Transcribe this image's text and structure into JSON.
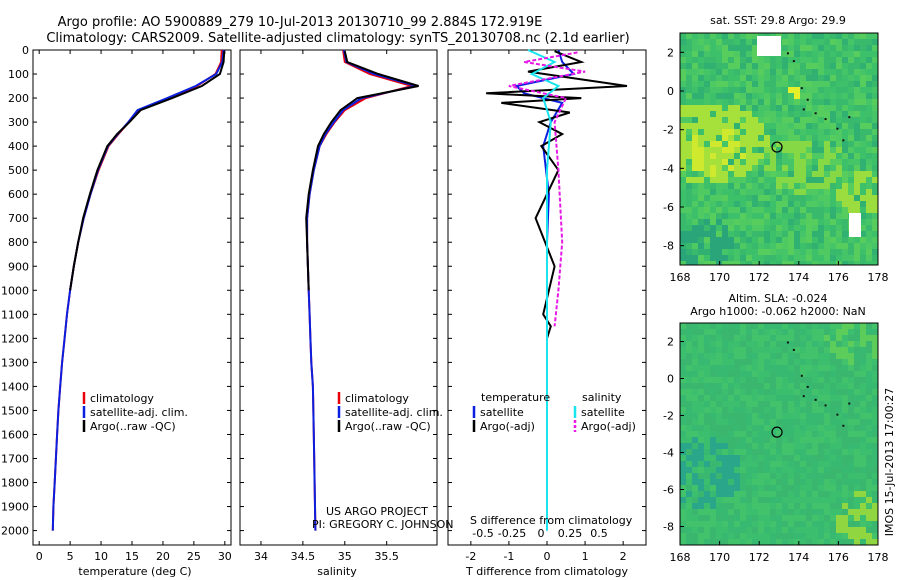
{
  "header": {
    "line1": "Argo profile: AO 5900889_279 10-Jul-2013 20130710_99 2.884S 172.919E",
    "line2": "Climatology: CARS2009. Satellite-adjusted climatology: synTS_20130708.nc (2.1d earlier)"
  },
  "credits": {
    "project": "US ARGO PROJECT",
    "pi": "PI: GREGORY C. JOHNSON"
  },
  "timestamp": "IMOS 15-Jul-2013 17:00:27",
  "colors": {
    "climatology": "#e8000b",
    "satellite": "#0a1fe0",
    "argo": "#000000",
    "sal_satellite": "#18e5ee",
    "sal_argo": "#e619e6",
    "map_base": "#35c270"
  },
  "chart_data": [
    {
      "type": "line",
      "id": "temperature",
      "xlabel": "temperature (deg C)",
      "xlim": [
        -1,
        31
      ],
      "xticks": [
        0,
        5,
        10,
        15,
        20,
        25,
        30
      ],
      "ylim": [
        0,
        2060
      ],
      "yticks": [
        0,
        100,
        200,
        300,
        400,
        500,
        600,
        700,
        800,
        900,
        1000,
        1100,
        1200,
        1300,
        1400,
        1500,
        1600,
        1700,
        1800,
        1900,
        2000
      ],
      "legend": [
        "climatology",
        "satellite-adj. clim.",
        "Argo(..raw -QC)"
      ],
      "series": [
        {
          "name": "climatology",
          "x": [
            29.5,
            29.4,
            28.5,
            25.5,
            21,
            16,
            14.5,
            12.8,
            11.2,
            9.6,
            8.3,
            7.2,
            6.3,
            5.6,
            5,
            4.5,
            4.1,
            3.7,
            3.4,
            3.1,
            2.9,
            2.7,
            2.5,
            2.3,
            2.2
          ],
          "y": [
            0,
            50,
            100,
            150,
            200,
            250,
            300,
            350,
            400,
            500,
            600,
            700,
            800,
            900,
            1000,
            1100,
            1200,
            1300,
            1400,
            1500,
            1600,
            1700,
            1800,
            1900,
            2000
          ]
        },
        {
          "name": "satellite-adj. clim.",
          "x": [
            29.8,
            29.6,
            28.6,
            25.3,
            20.7,
            15.9,
            14.4,
            12.7,
            11.1,
            9.5,
            8.3,
            7.2,
            6.3,
            5.6,
            5,
            4.5,
            4.1,
            3.7,
            3.4,
            3.1,
            2.9,
            2.7,
            2.5,
            2.3,
            2.2
          ],
          "y": [
            0,
            50,
            100,
            150,
            200,
            250,
            300,
            350,
            400,
            500,
            600,
            700,
            800,
            900,
            1000,
            1100,
            1200,
            1300,
            1400,
            1500,
            1600,
            1700,
            1800,
            1900,
            2000
          ]
        },
        {
          "name": "Argo(..raw -QC)",
          "x": [
            29.9,
            29.8,
            29.2,
            26.3,
            21.5,
            16.4,
            14.6,
            12.6,
            11,
            9.4,
            8.2,
            7.1,
            6.3,
            5.6,
            5
          ],
          "y": [
            5,
            50,
            100,
            150,
            200,
            250,
            300,
            350,
            400,
            500,
            600,
            700,
            800,
            900,
            1000
          ]
        }
      ]
    },
    {
      "type": "line",
      "id": "salinity",
      "xlabel": "salinity",
      "xlim": [
        33.75,
        36.1
      ],
      "xticks": [
        34,
        34.5,
        35,
        35.5
      ],
      "ylim": [
        0,
        2060
      ],
      "legend": [
        "climatology",
        "satellite-adj. clim.",
        "Argo(..raw -QC)"
      ],
      "series": [
        {
          "name": "climatology",
          "x": [
            34.98,
            35.0,
            35.3,
            35.8,
            35.25,
            35.0,
            34.88,
            34.78,
            34.7,
            34.63,
            34.58,
            34.55,
            34.55,
            34.56,
            34.57,
            34.58,
            34.59,
            34.6,
            34.62,
            34.63,
            34.64,
            34.65
          ],
          "y": [
            0,
            50,
            100,
            150,
            200,
            250,
            300,
            350,
            400,
            500,
            600,
            700,
            800,
            900,
            1000,
            1100,
            1200,
            1300,
            1400,
            1600,
            1800,
            2000
          ]
        },
        {
          "name": "satellite-adj. clim.",
          "x": [
            34.99,
            35.02,
            35.35,
            35.85,
            35.2,
            34.98,
            34.87,
            34.77,
            34.7,
            34.63,
            34.58,
            34.55,
            34.55,
            34.56,
            34.57,
            34.58,
            34.59,
            34.6,
            34.62,
            34.63,
            34.64,
            34.65
          ],
          "y": [
            0,
            50,
            100,
            150,
            200,
            250,
            300,
            350,
            400,
            500,
            600,
            700,
            800,
            900,
            1000,
            1100,
            1200,
            1300,
            1400,
            1600,
            1800,
            2000
          ]
        },
        {
          "name": "Argo(..raw -QC)",
          "x": [
            35.0,
            35.03,
            35.4,
            35.88,
            35.15,
            34.95,
            34.84,
            34.75,
            34.68,
            34.62,
            34.57,
            34.54,
            34.55,
            34.56,
            34.57
          ],
          "y": [
            5,
            50,
            100,
            150,
            200,
            250,
            300,
            350,
            400,
            500,
            600,
            700,
            800,
            900,
            1000
          ]
        }
      ]
    },
    {
      "type": "line",
      "id": "difference",
      "xlabel": "T difference from climatology",
      "xlabel_top": "S difference from climatology",
      "xlim": [
        -2.6,
        2.6
      ],
      "xticks": [
        -2,
        -1,
        0,
        1,
        2
      ],
      "xticks_top": [
        "-0.5",
        "-0.25",
        "0",
        "0.25",
        "0.5"
      ],
      "ylim": [
        0,
        2060
      ],
      "legend_titles": [
        "temperature",
        "salinity"
      ],
      "legend": [
        "satellite",
        "Argo(-adj)",
        "satellite",
        "Argo(-adj)"
      ],
      "series": [
        {
          "name": "temperature satellite",
          "x": [
            0.3,
            0.4,
            0.7,
            -0.8,
            -0.6,
            0.4,
            0.1,
            -0.1,
            0.05,
            0,
            0,
            0
          ],
          "y": [
            0,
            50,
            100,
            150,
            180,
            220,
            300,
            400,
            600,
            800,
            1200,
            2000
          ]
        },
        {
          "name": "temperature Argo(-adj)",
          "x": [
            0.2,
            0.9,
            -0.5,
            2.1,
            -1.6,
            0.9,
            -1.2,
            0.6,
            -0.2,
            0.4,
            -0.15,
            0.3,
            -0.3,
            0.2,
            -0.1,
            0.1,
            0
          ],
          "y": [
            5,
            50,
            90,
            150,
            180,
            200,
            220,
            260,
            300,
            350,
            400,
            500,
            700,
            900,
            1100,
            1150,
            1200
          ]
        },
        {
          "name": "salinity satellite",
          "x": [
            -0.5,
            0.2,
            -0.4,
            0.3,
            -0.1,
            0.1,
            0,
            0,
            0,
            0
          ],
          "y": [
            0,
            50,
            100,
            150,
            200,
            300,
            500,
            800,
            1200,
            2000
          ]
        },
        {
          "name": "salinity Argo(-adj)",
          "x": [
            0.8,
            -0.6,
            1.0,
            -1.0,
            0.5,
            0.2,
            0.3,
            0.4,
            0.3,
            0.2
          ],
          "y": [
            10,
            50,
            90,
            150,
            200,
            300,
            500,
            800,
            1000,
            1150
          ]
        }
      ]
    },
    {
      "type": "heatmap",
      "id": "sst_map",
      "title": "sat. SST: 29.8 Argo: 29.9",
      "xlim": [
        168,
        178
      ],
      "xticks": [
        168,
        170,
        172,
        174,
        176,
        178
      ],
      "ylim": [
        -9,
        3
      ],
      "yticks": [
        -8,
        -6,
        -4,
        -2,
        0,
        2
      ],
      "marker": {
        "lon": 172.9,
        "lat": -2.9
      }
    },
    {
      "type": "heatmap",
      "id": "sla_map",
      "title": "Altim. SLA: -0.024",
      "subtitle": "Argo h1000: -0.062 h2000: NaN",
      "xlim": [
        168,
        178
      ],
      "xticks": [
        168,
        170,
        172,
        174,
        176,
        178
      ],
      "ylim": [
        -9,
        3
      ],
      "yticks": [
        -8,
        -6,
        -4,
        -2,
        0,
        2
      ],
      "marker": {
        "lon": 172.9,
        "lat": -2.9
      }
    }
  ]
}
